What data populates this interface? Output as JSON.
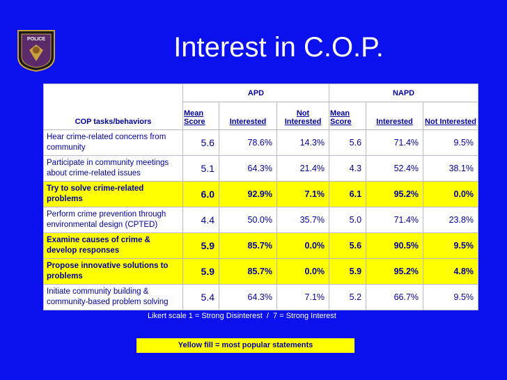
{
  "header": {
    "title": "Interest in C.O.P.",
    "badge_text": "POLICE"
  },
  "table": {
    "groups": [
      "APD",
      "NAPD"
    ],
    "columns": [
      "COP tasks/behaviors",
      "Mean Score",
      "Interested",
      "Not Interested",
      "Mean Score",
      "Interested",
      "Not Interested"
    ],
    "rows": [
      {
        "highlight": false,
        "cells": [
          "Hear crime-related concerns from community",
          "5.6",
          "78.6%",
          "14.3%",
          "5.6",
          "71.4%",
          "9.5%"
        ]
      },
      {
        "highlight": false,
        "cells": [
          "Participate in community meetings about crime-related issues",
          "5.1",
          "64.3%",
          "21.4%",
          "4.3",
          "52.4%",
          "38.1%"
        ]
      },
      {
        "highlight": true,
        "cells": [
          "Try to solve crime-related problems",
          "6.0",
          "92.9%",
          "7.1%",
          "6.1",
          "95.2%",
          "0.0%"
        ]
      },
      {
        "highlight": false,
        "cells": [
          "Perform crime prevention through environmental design (CPTED)",
          "4.4",
          "50.0%",
          "35.7%",
          "5.0",
          "71.4%",
          "23.8%"
        ]
      },
      {
        "highlight": true,
        "cells": [
          "Examine causes of crime & develop responses",
          "5.9",
          "85.7%",
          "0.0%",
          "5.6",
          "90.5%",
          "9.5%"
        ]
      },
      {
        "highlight": true,
        "cells": [
          "Propose innovative solutions to problems",
          "5.9",
          "85.7%",
          "0.0%",
          "5.9",
          "95.2%",
          "4.8%"
        ]
      },
      {
        "highlight": false,
        "cells": [
          "Initiate community building & community-based problem solving",
          "5.4",
          "64.3%",
          "7.1%",
          "5.2",
          "66.7%",
          "9.5%"
        ]
      }
    ]
  },
  "note": "Likert scale 1 = Strong Disinterest  /  7 = Strong Interest",
  "legend": "Yellow fill = most popular statements"
}
